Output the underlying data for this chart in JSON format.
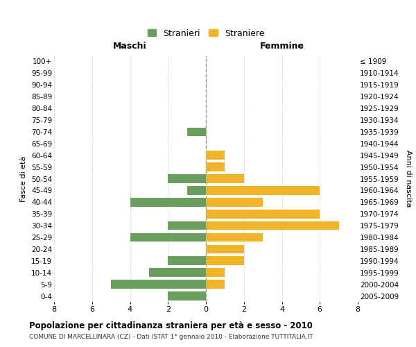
{
  "age_groups": [
    "100+",
    "95-99",
    "90-94",
    "85-89",
    "80-84",
    "75-79",
    "70-74",
    "65-69",
    "60-64",
    "55-59",
    "50-54",
    "45-49",
    "40-44",
    "35-39",
    "30-34",
    "25-29",
    "20-24",
    "15-19",
    "10-14",
    "5-9",
    "0-4"
  ],
  "birth_years": [
    "≤ 1909",
    "1910-1914",
    "1915-1919",
    "1920-1924",
    "1925-1929",
    "1930-1934",
    "1935-1939",
    "1940-1944",
    "1945-1949",
    "1950-1954",
    "1955-1959",
    "1960-1964",
    "1965-1969",
    "1970-1974",
    "1975-1979",
    "1980-1984",
    "1985-1989",
    "1990-1994",
    "1995-1999",
    "2000-2004",
    "2005-2009"
  ],
  "maschi": [
    0,
    0,
    0,
    0,
    0,
    0,
    1,
    0,
    0,
    0,
    2,
    1,
    4,
    0,
    2,
    4,
    0,
    2,
    3,
    5,
    2
  ],
  "femmine": [
    0,
    0,
    0,
    0,
    0,
    0,
    0,
    0,
    1,
    1,
    2,
    6,
    3,
    6,
    7,
    3,
    2,
    2,
    1,
    1,
    0
  ],
  "maschi_color": "#6b9e5e",
  "femmine_color": "#f0b429",
  "grid_color": "#cccccc",
  "zeroline_color": "#999966",
  "title": "Popolazione per cittadinanza straniera per età e sesso - 2010",
  "subtitle": "COMUNE DI MARCELLINARA (CZ) - Dati ISTAT 1° gennaio 2010 - Elaborazione TUTTITALIA.IT",
  "label_maschi": "Maschi",
  "label_femmine": "Femmine",
  "ylabel_left": "Fasce di età",
  "ylabel_right": "Anni di nascita",
  "legend_maschi": "Stranieri",
  "legend_femmine": "Straniere",
  "xlim": 8,
  "bar_height": 0.75
}
